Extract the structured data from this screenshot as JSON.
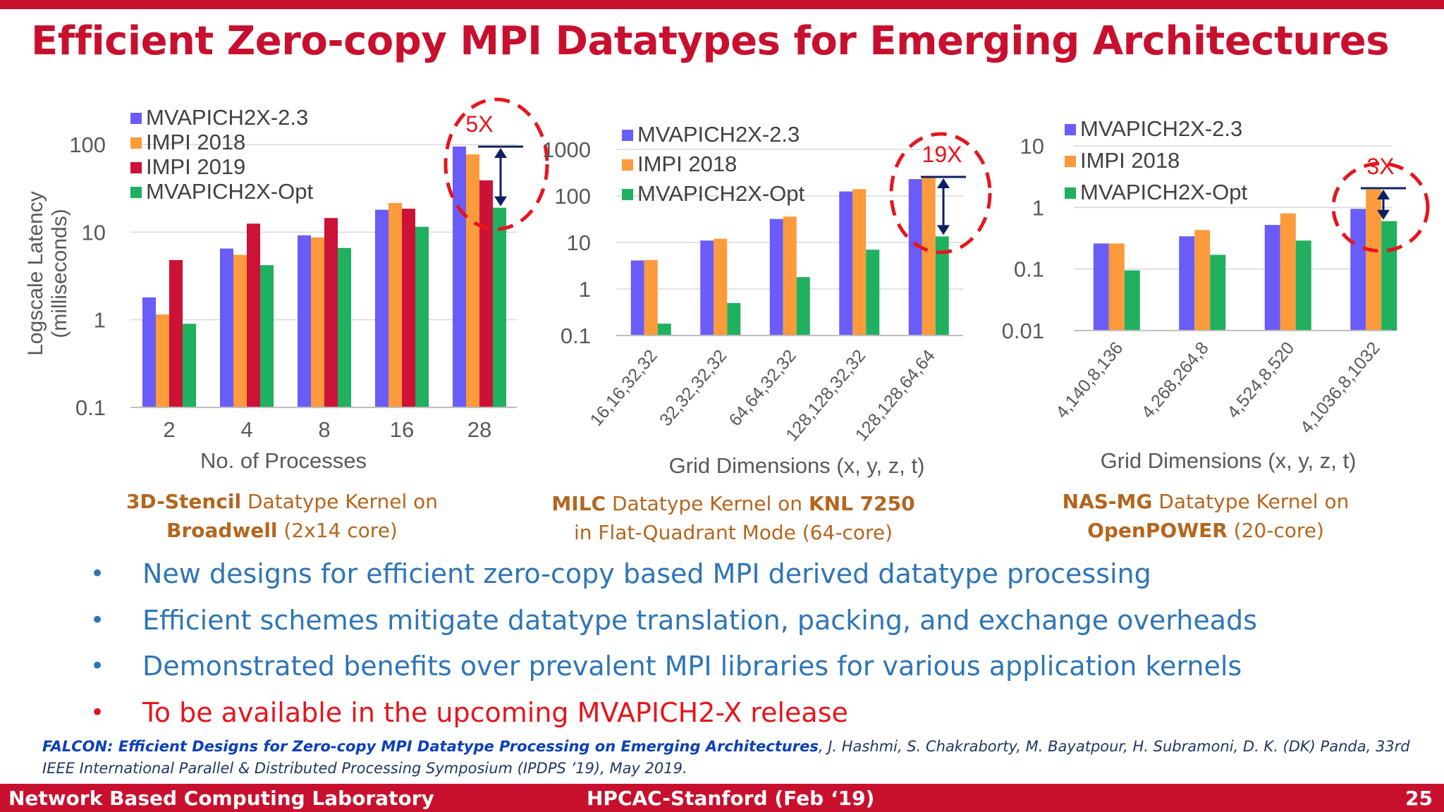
{
  "slide_title": "Efficient Zero-copy MPI Datatypes for Emerging Architectures",
  "colors": {
    "blue": "#6a5cf8",
    "orange": "#fd9a3b",
    "red": "#cc1236",
    "green": "#1fb060",
    "accent": "#c8102e",
    "bullet_blue": "#2e75b6"
  },
  "chart_data": [
    {
      "type": "bar",
      "log_scale": true,
      "grid": true,
      "legend_position": "top-left",
      "ylabel": "Logscale Latency (milliseconds)",
      "xlabel": "No. of Processes",
      "ylim": [
        0.1,
        100
      ],
      "yticks": [
        "0.1",
        "1",
        "10",
        "100"
      ],
      "categories": [
        "2",
        "4",
        "8",
        "16",
        "28"
      ],
      "series": [
        {
          "name": "MVAPICH2X-2.3",
          "color": "#6a5cf8",
          "values": [
            1.8,
            6.5,
            9.2,
            18,
            95
          ]
        },
        {
          "name": "IMPI 2018",
          "color": "#fd9a3b",
          "values": [
            1.15,
            5.5,
            8.7,
            21.5,
            77
          ]
        },
        {
          "name": "IMPI 2019",
          "color": "#cc1236",
          "values": [
            4.8,
            12.5,
            14.5,
            18.5,
            39
          ]
        },
        {
          "name": "MVAPICH2X-Opt",
          "color": "#1fb060",
          "values": [
            0.9,
            4.2,
            6.6,
            11.5,
            19
          ]
        }
      ],
      "annotation": "5X"
    },
    {
      "type": "bar",
      "log_scale": true,
      "grid": true,
      "legend_position": "top-left",
      "ylabel": "",
      "xlabel": "Grid Dimensions (x, y, z, t)",
      "ylim": [
        0.1,
        1000
      ],
      "yticks": [
        "0.1",
        "1",
        "10",
        "100",
        "1000"
      ],
      "categories": [
        "16,16,32,32",
        "32,32,32,32",
        "64,64,32,32",
        "128,128,32,32",
        "128,128,64,64"
      ],
      "series": [
        {
          "name": "MVAPICH2X-2.3",
          "color": "#6a5cf8",
          "values": [
            4.1,
            11,
            32,
            125,
            230
          ]
        },
        {
          "name": "IMPI 2018",
          "color": "#fd9a3b",
          "values": [
            4.2,
            12,
            36,
            140,
            265
          ]
        },
        {
          "name": "MVAPICH2X-Opt",
          "color": "#1fb060",
          "values": [
            0.18,
            0.5,
            1.8,
            7,
            13.5
          ]
        }
      ],
      "annotation": "19X"
    },
    {
      "type": "bar",
      "log_scale": true,
      "grid": true,
      "legend_position": "top-left",
      "ylabel": "",
      "xlabel": "Grid Dimensions (x, y, z, t)",
      "ylim": [
        0.01,
        10
      ],
      "yticks": [
        "0.01",
        "0.1",
        "1",
        "10"
      ],
      "categories": [
        "4,140,8,136",
        "4,268,264,8",
        "4,524,8,520",
        "4,1036,8,1032"
      ],
      "series": [
        {
          "name": "MVAPICH2X-2.3",
          "color": "#6a5cf8",
          "values": [
            0.26,
            0.34,
            0.52,
            0.95
          ]
        },
        {
          "name": "IMPI 2018",
          "color": "#fd9a3b",
          "values": [
            0.26,
            0.43,
            0.8,
            1.95
          ]
        },
        {
          "name": "MVAPICH2X-Opt",
          "color": "#1fb060",
          "values": [
            0.095,
            0.17,
            0.29,
            0.6
          ]
        }
      ],
      "annotation": "3X"
    }
  ],
  "captions": {
    "c1_bold1": "3D-Stencil",
    "c1_t1": " Datatype Kernel on",
    "c1_bold2": "Broadwell",
    "c1_t2": " (2x14 core)",
    "c2_bold1": "MILC",
    "c2_t1": " Datatype Kernel on ",
    "c2_bold2": "KNL 7250",
    "c2_line2": "in Flat-Quadrant Mode (64-core)",
    "c3_bold1": "NAS-MG",
    "c3_t1": " Datatype Kernel on",
    "c3_bold2": "OpenPOWER",
    "c3_t2": " (20-core)"
  },
  "bullets": [
    "New designs for efficient zero-copy based MPI derived datatype processing",
    "Efficient schemes mitigate datatype translation, packing, and exchange overheads",
    "Demonstrated benefits over prevalent MPI libraries for various application kernels",
    "To be available in the upcoming MVAPICH2-X release"
  ],
  "bullet_symbol": "•",
  "reference": {
    "bold": "FALCON: Efficient Designs for Zero-copy MPI Datatype Processing on Emerging Architectures",
    "rest": ", J. Hashmi, S. Chakraborty, M. Bayatpour, H. Subramoni, D. K. (DK) Panda, 33rd IEEE International Parallel & Distributed Processing Symposium (IPDPS ’19), May 2019."
  },
  "footer": {
    "left": "Network Based Computing Laboratory",
    "center": "HPCAC-Stanford (Feb ‘19)",
    "page": "25"
  }
}
